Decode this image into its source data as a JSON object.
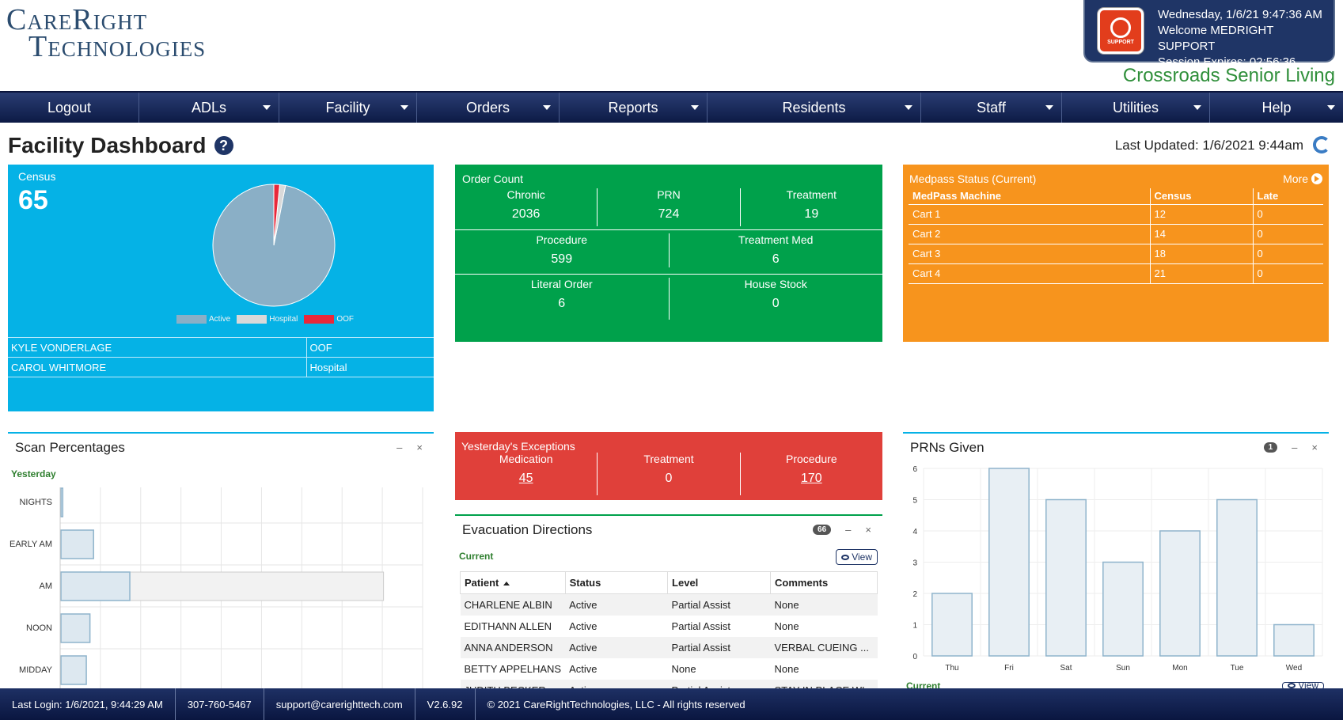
{
  "header": {
    "logo_line1": "CareRight",
    "logo_line2": "Technologies",
    "support_icon_text": "SUPPORT",
    "datetime": "Wednesday, 1/6/21 9:47:36 AM",
    "welcome": "Welcome MEDRIGHT SUPPORT",
    "session": "Session Expires: 02:56:36",
    "facility": "Crossroads Senior Living"
  },
  "nav": {
    "items": [
      {
        "label": "Logout",
        "dropdown": false
      },
      {
        "label": "ADLs",
        "dropdown": true
      },
      {
        "label": "Facility",
        "dropdown": true
      },
      {
        "label": "Orders",
        "dropdown": true
      },
      {
        "label": "Reports",
        "dropdown": true
      },
      {
        "label": "Residents",
        "dropdown": true
      },
      {
        "label": "Staff",
        "dropdown": true
      },
      {
        "label": "Utilities",
        "dropdown": true
      },
      {
        "label": "Help",
        "dropdown": true
      }
    ]
  },
  "page": {
    "title": "Facility Dashboard",
    "help": "?",
    "last_updated": "Last Updated: 1/6/2021 9:44am"
  },
  "census": {
    "label": "Census",
    "count": "65",
    "legend": [
      "Active",
      "Hospital",
      "OOF"
    ],
    "colors": {
      "active": "#8aafc6",
      "hospital": "#d9d9d9",
      "oof": "#e8283a"
    },
    "chart_data": {
      "type": "pie",
      "categories": [
        "Active",
        "Hospital",
        "OOF"
      ],
      "values": [
        63,
        1,
        1
      ]
    },
    "rows": [
      {
        "name": "KYLE VONDERLAGE",
        "status": "OOF"
      },
      {
        "name": "CAROL WHITMORE",
        "status": "Hospital"
      }
    ]
  },
  "orders": {
    "label": "Order Count",
    "row1": [
      {
        "label": "Chronic",
        "value": "2036"
      },
      {
        "label": "PRN",
        "value": "724"
      },
      {
        "label": "Treatment",
        "value": "19"
      }
    ],
    "row2": [
      {
        "label": "Procedure",
        "value": "599"
      },
      {
        "label": "Treatment Med",
        "value": "6"
      }
    ],
    "row3": [
      {
        "label": "Literal Order",
        "value": "6"
      },
      {
        "label": "House Stock",
        "value": "0"
      }
    ]
  },
  "medpass": {
    "label": "Medpass Status (Current)",
    "more": "More",
    "columns": [
      "MedPass Machine",
      "Census",
      "Late"
    ],
    "rows": [
      [
        "Cart 1",
        "12",
        "0"
      ],
      [
        "Cart 2",
        "14",
        "0"
      ],
      [
        "Cart 3",
        "18",
        "0"
      ],
      [
        "Cart 4",
        "21",
        "0"
      ]
    ]
  },
  "scan": {
    "title": "Scan Percentages",
    "minimize": "–",
    "close": "×",
    "subtitle": "Yesterday",
    "chart_data": {
      "type": "bar",
      "orientation": "horizontal",
      "categories": [
        "NIGHTS",
        "EARLY AM",
        "AM",
        "NOON",
        "MIDDAY"
      ],
      "series": [
        {
          "values": [
            0.5,
            9,
            19,
            8,
            7
          ]
        },
        {
          "values": [
            0.5,
            9,
            89,
            8,
            7
          ]
        }
      ]
    }
  },
  "exceptions": {
    "label": "Yesterday's Exceptions",
    "items": [
      {
        "label": "Medication",
        "value": "45",
        "link": true
      },
      {
        "label": "Treatment",
        "value": "0",
        "link": false
      },
      {
        "label": "Procedure",
        "value": "170",
        "link": true
      }
    ]
  },
  "evacuation": {
    "title": "Evacuation Directions",
    "badge": "66",
    "minimize": "–",
    "close": "×",
    "subtitle": "Current",
    "view": "View",
    "columns": [
      "Patient",
      "Status",
      "Level",
      "Comments"
    ],
    "rows": [
      [
        "CHARLENE ALBIN",
        "Active",
        "Partial Assist",
        "None"
      ],
      [
        "EDITHANN ALLEN",
        "Active",
        "Partial Assist",
        "None"
      ],
      [
        "ANNA ANDERSON",
        "Active",
        "Partial Assist",
        "VERBAL CUEING ..."
      ],
      [
        "BETTY APPELHANS",
        "Active",
        "None",
        "None"
      ],
      [
        "JUDITH BECKER",
        "Active",
        "Partial Assist",
        "STAY IN PLACE WI..."
      ]
    ]
  },
  "prns": {
    "title": "PRNs Given",
    "badge": "1",
    "minimize": "–",
    "close": "×",
    "subtitle": "Current",
    "view": "View",
    "chart_data": {
      "type": "bar",
      "categories": [
        "Thu",
        "Fri",
        "Sat",
        "Sun",
        "Mon",
        "Tue",
        "Wed"
      ],
      "values": [
        2,
        6,
        5,
        3,
        4,
        5,
        1
      ],
      "ylim": [
        0,
        6
      ],
      "yticks": [
        0,
        1,
        2,
        3,
        4,
        5,
        6
      ]
    }
  },
  "footer": {
    "last_login": "Last Login: 1/6/2021, 9:44:29 AM",
    "phone": "307-760-5467",
    "email": "support@carerighttech.com",
    "version": "V2.6.92",
    "copyright": "© 2021 CareRightTechnologies, LLC - All rights reserved"
  }
}
